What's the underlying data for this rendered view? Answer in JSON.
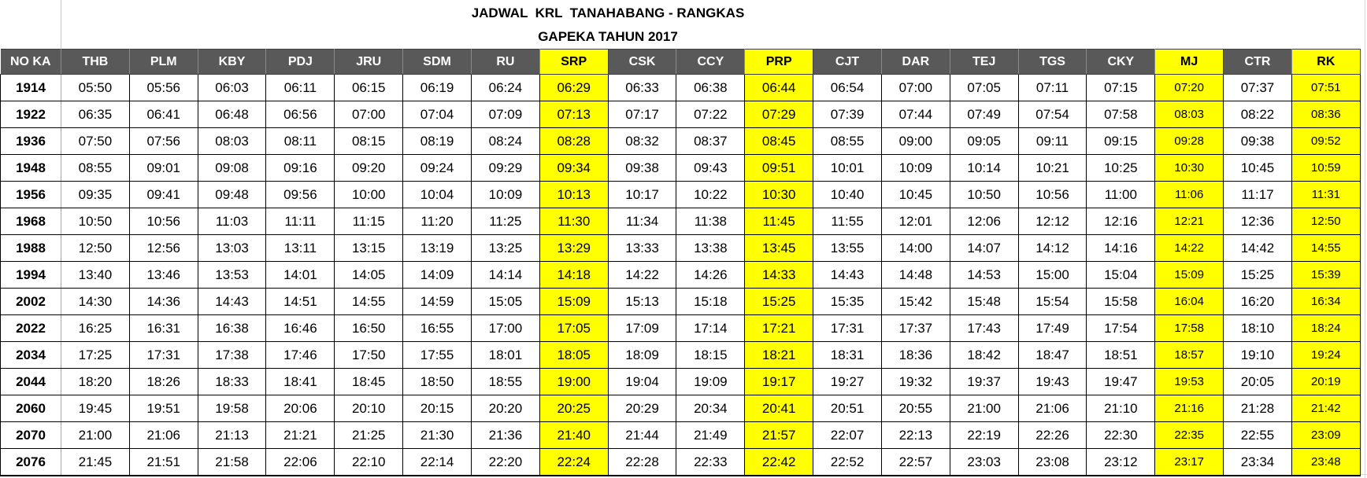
{
  "title": {
    "line1": "JADWAL  KRL  TANAHABANG - RANGKAS",
    "line2": "GAPEKA TAHUN 2017"
  },
  "colors": {
    "header_bg": "#595959",
    "header_text": "#ffffff",
    "highlight_yellow": "#ffff00",
    "grid_black": "#000000",
    "gridline_faint": "#d6d6d6"
  },
  "columns": [
    "NO KA",
    "THB",
    "PLM",
    "KBY",
    "PDJ",
    "JRU",
    "SDM",
    "RU",
    "SRP",
    "CSK",
    "CCY",
    "PRP",
    "CJT",
    "DAR",
    "TEJ",
    "TGS",
    "CKY",
    "MJ",
    "CTR",
    "RK"
  ],
  "highlight_keys": [
    "SRP",
    "PRP",
    "MJ",
    "RK"
  ],
  "small_font_keys": [
    "MJ",
    "RK"
  ],
  "rows": [
    {
      "no": "1914",
      "times": [
        "05:50",
        "05:56",
        "06:03",
        "06:11",
        "06:15",
        "06:19",
        "06:24",
        "06:29",
        "06:33",
        "06:38",
        "06:44",
        "06:54",
        "07:00",
        "07:05",
        "07:11",
        "07:15",
        "07:20",
        "07:37",
        "07:51"
      ]
    },
    {
      "no": "1922",
      "times": [
        "06:35",
        "06:41",
        "06:48",
        "06:56",
        "07:00",
        "07:04",
        "07:09",
        "07:13",
        "07:17",
        "07:22",
        "07:29",
        "07:39",
        "07:44",
        "07:49",
        "07:54",
        "07:58",
        "08:03",
        "08:22",
        "08:36"
      ]
    },
    {
      "no": "1936",
      "times": [
        "07:50",
        "07:56",
        "08:03",
        "08:11",
        "08:15",
        "08:19",
        "08:24",
        "08:28",
        "08:32",
        "08:37",
        "08:45",
        "08:55",
        "09:00",
        "09:05",
        "09:11",
        "09:15",
        "09:28",
        "09:38",
        "09:52"
      ]
    },
    {
      "no": "1948",
      "times": [
        "08:55",
        "09:01",
        "09:08",
        "09:16",
        "09:20",
        "09:24",
        "09:29",
        "09:34",
        "09:38",
        "09:43",
        "09:51",
        "10:01",
        "10:09",
        "10:14",
        "10:21",
        "10:25",
        "10:30",
        "10:45",
        "10:59"
      ]
    },
    {
      "no": "1956",
      "times": [
        "09:35",
        "09:41",
        "09:48",
        "09:56",
        "10:00",
        "10:04",
        "10:09",
        "10:13",
        "10:17",
        "10:22",
        "10:30",
        "10:40",
        "10:45",
        "10:50",
        "10:56",
        "11:00",
        "11:06",
        "11:17",
        "11:31"
      ]
    },
    {
      "no": "1968",
      "times": [
        "10:50",
        "10:56",
        "11:03",
        "11:11",
        "11:15",
        "11:20",
        "11:25",
        "11:30",
        "11:34",
        "11:38",
        "11:45",
        "11:55",
        "12:01",
        "12:06",
        "12:12",
        "12:16",
        "12:21",
        "12:36",
        "12:50"
      ]
    },
    {
      "no": "1988",
      "times": [
        "12:50",
        "12:56",
        "13:03",
        "13:11",
        "13:15",
        "13:19",
        "13:25",
        "13:29",
        "13:33",
        "13:38",
        "13:45",
        "13:55",
        "14:00",
        "14:07",
        "14:12",
        "14:16",
        "14:22",
        "14:42",
        "14:55"
      ]
    },
    {
      "no": "1994",
      "times": [
        "13:40",
        "13:46",
        "13:53",
        "14:01",
        "14:05",
        "14:09",
        "14:14",
        "14:18",
        "14:22",
        "14:26",
        "14:33",
        "14:43",
        "14:48",
        "14:53",
        "15:00",
        "15:04",
        "15:09",
        "15:25",
        "15:39"
      ]
    },
    {
      "no": "2002",
      "times": [
        "14:30",
        "14:36",
        "14:43",
        "14:51",
        "14:55",
        "14:59",
        "15:05",
        "15:09",
        "15:13",
        "15:18",
        "15:25",
        "15:35",
        "15:42",
        "15:48",
        "15:54",
        "15:58",
        "16:04",
        "16:20",
        "16:34"
      ]
    },
    {
      "no": "2022",
      "times": [
        "16:25",
        "16:31",
        "16:38",
        "16:46",
        "16:50",
        "16:55",
        "17:00",
        "17:05",
        "17:09",
        "17:14",
        "17:21",
        "17:31",
        "17:37",
        "17:43",
        "17:49",
        "17:54",
        "17:58",
        "18:10",
        "18:24"
      ]
    },
    {
      "no": "2034",
      "times": [
        "17:25",
        "17:31",
        "17:38",
        "17:46",
        "17:50",
        "17:55",
        "18:01",
        "18:05",
        "18:09",
        "18:15",
        "18:21",
        "18:31",
        "18:36",
        "18:42",
        "18:47",
        "18:51",
        "18:57",
        "19:10",
        "19:24"
      ]
    },
    {
      "no": "2044",
      "times": [
        "18:20",
        "18:26",
        "18:33",
        "18:41",
        "18:45",
        "18:50",
        "18:55",
        "19:00",
        "19:04",
        "19:09",
        "19:17",
        "19:27",
        "19:32",
        "19:37",
        "19:43",
        "19:47",
        "19:53",
        "20:05",
        "20:19"
      ]
    },
    {
      "no": "2060",
      "times": [
        "19:45",
        "19:51",
        "19:58",
        "20:06",
        "20:10",
        "20:15",
        "20:20",
        "20:25",
        "20:29",
        "20:34",
        "20:41",
        "20:51",
        "20:55",
        "21:00",
        "21:06",
        "21:10",
        "21:16",
        "21:28",
        "21:42"
      ]
    },
    {
      "no": "2070",
      "times": [
        "21:00",
        "21:06",
        "21:13",
        "21:21",
        "21:25",
        "21:30",
        "21:36",
        "21:40",
        "21:44",
        "21:49",
        "21:57",
        "22:07",
        "22:13",
        "22:19",
        "22:26",
        "22:30",
        "22:35",
        "22:55",
        "23:09"
      ]
    },
    {
      "no": "2076",
      "times": [
        "21:45",
        "21:51",
        "21:58",
        "22:06",
        "22:10",
        "22:14",
        "22:20",
        "22:24",
        "22:28",
        "22:33",
        "22:42",
        "22:52",
        "22:57",
        "23:03",
        "23:08",
        "23:12",
        "23:17",
        "23:34",
        "23:48"
      ]
    }
  ]
}
